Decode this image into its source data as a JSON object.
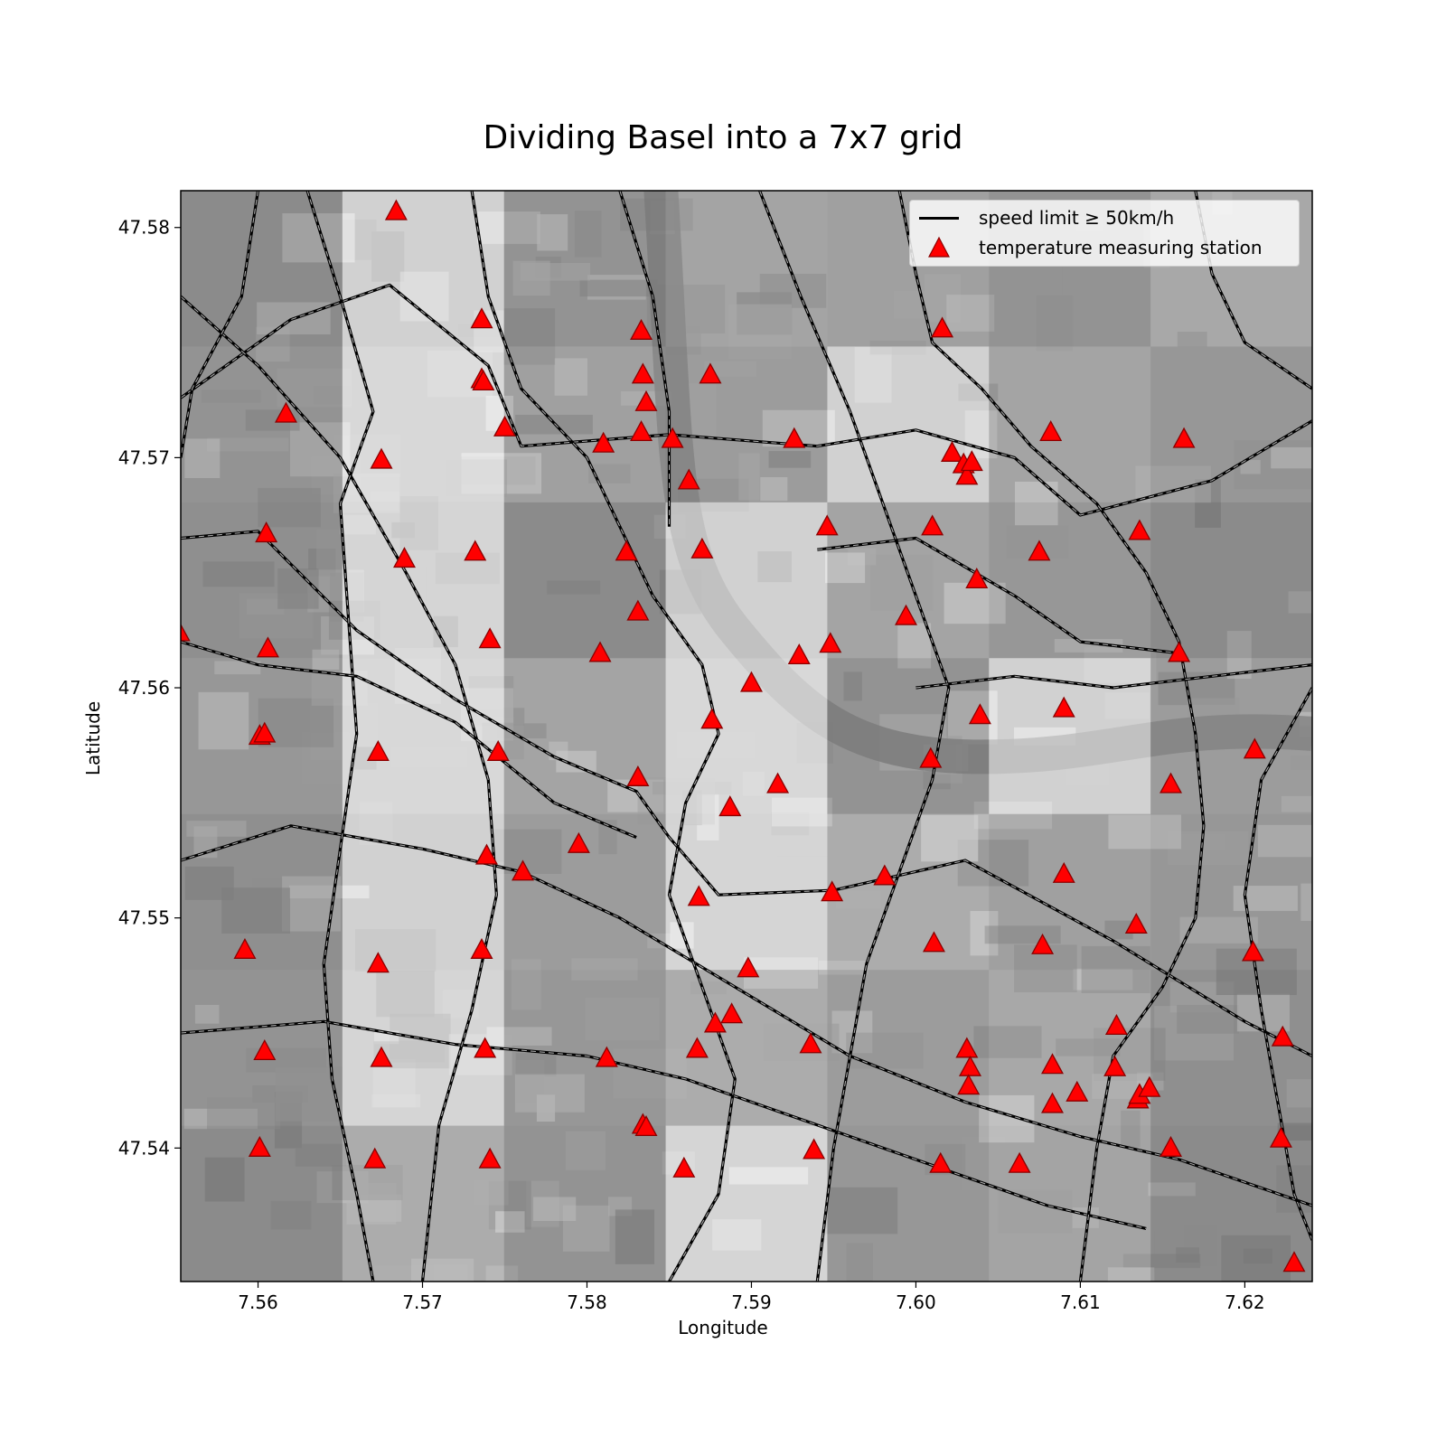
{
  "title": "Dividing Basel into a 7x7 grid",
  "chart_data": {
    "type": "scatter",
    "title": "Dividing Basel into a 7x7 grid",
    "xlabel": "Longitude",
    "ylabel": "Latitude",
    "xlim": [
      7.5553,
      7.6241
    ],
    "ylim": [
      47.5342,
      47.5816
    ],
    "x_ticks": [
      "7.56",
      "7.57",
      "7.58",
      "7.59",
      "7.60",
      "7.61",
      "7.62"
    ],
    "y_ticks": [
      "47.54",
      "47.55",
      "47.56",
      "47.57",
      "47.58"
    ],
    "grid_cells": "7x7",
    "grid_shading": [
      [
        0.55,
        0.1,
        0.45,
        0.25,
        0.3,
        0.45,
        0.2
      ],
      [
        0.45,
        0.0,
        0.3,
        0.35,
        0.1,
        0.25,
        0.4
      ],
      [
        0.5,
        0.05,
        0.55,
        0.1,
        0.25,
        0.4,
        0.55
      ],
      [
        0.4,
        0.0,
        0.25,
        0.0,
        0.45,
        0.1,
        0.35
      ],
      [
        0.5,
        0.1,
        0.35,
        0.05,
        0.15,
        0.3,
        0.4
      ],
      [
        0.45,
        0.05,
        0.4,
        0.15,
        0.35,
        0.2,
        0.5
      ],
      [
        0.55,
        0.15,
        0.45,
        0.05,
        0.4,
        0.25,
        0.55
      ]
    ],
    "legend": {
      "placement": "top-right",
      "entries": [
        "speed limit ≥ 50km/h",
        "temperature measuring station"
      ]
    },
    "series": [
      {
        "name": "temperature measuring station",
        "marker": "triangle",
        "color": "#ff0000",
        "edge_color": "#8b0000",
        "points": [
          [
            7.5552,
            47.5624
          ],
          [
            7.5684,
            47.5807
          ],
          [
            7.5736,
            47.576
          ],
          [
            7.5736,
            47.5734
          ],
          [
            7.5737,
            47.5733
          ],
          [
            7.5617,
            47.5719
          ],
          [
            7.5675,
            47.5699
          ],
          [
            7.575,
            47.5713
          ],
          [
            7.5605,
            47.5667
          ],
          [
            7.5689,
            47.5656
          ],
          [
            7.5732,
            47.5659
          ],
          [
            7.5833,
            47.5755
          ],
          [
            7.5834,
            47.5736
          ],
          [
            7.5836,
            47.5724
          ],
          [
            7.5833,
            47.5711
          ],
          [
            7.581,
            47.5706
          ],
          [
            7.5852,
            47.5708
          ],
          [
            7.5875,
            47.5736
          ],
          [
            7.5862,
            47.569
          ],
          [
            7.587,
            47.566
          ],
          [
            7.5824,
            47.5659
          ],
          [
            7.5831,
            47.5633
          ],
          [
            7.5808,
            47.5615
          ],
          [
            7.5741,
            47.5621
          ],
          [
            7.5606,
            47.5617
          ],
          [
            7.5601,
            47.5579
          ],
          [
            7.5604,
            47.558
          ],
          [
            7.5673,
            47.5572
          ],
          [
            7.5746,
            47.5572
          ],
          [
            7.5831,
            47.5561
          ],
          [
            7.5876,
            47.5586
          ],
          [
            7.59,
            47.5602
          ],
          [
            7.5929,
            47.5614
          ],
          [
            7.5948,
            47.5619
          ],
          [
            7.5946,
            47.567
          ],
          [
            7.5926,
            47.5708
          ],
          [
            7.6016,
            47.5756
          ],
          [
            7.6022,
            47.5702
          ],
          [
            7.6029,
            47.5697
          ],
          [
            7.6031,
            47.5692
          ],
          [
            7.6034,
            47.5698
          ],
          [
            7.601,
            47.567
          ],
          [
            7.6037,
            47.5647
          ],
          [
            7.5994,
            47.5631
          ],
          [
            7.6039,
            47.5588
          ],
          [
            7.6009,
            47.5569
          ],
          [
            7.6082,
            47.5711
          ],
          [
            7.6075,
            47.5659
          ],
          [
            7.6136,
            47.5668
          ],
          [
            7.6163,
            47.5708
          ],
          [
            7.616,
            47.5615
          ],
          [
            7.609,
            47.5591
          ],
          [
            7.6155,
            47.5558
          ],
          [
            7.6206,
            47.5573
          ],
          [
            7.5916,
            47.5558
          ],
          [
            7.5887,
            47.5548
          ],
          [
            7.5795,
            47.5532
          ],
          [
            7.5739,
            47.5527
          ],
          [
            7.5761,
            47.552
          ],
          [
            7.5868,
            47.5509
          ],
          [
            7.5949,
            47.5511
          ],
          [
            7.5981,
            47.5518
          ],
          [
            7.609,
            47.5519
          ],
          [
            7.6011,
            47.5489
          ],
          [
            7.6077,
            47.5488
          ],
          [
            7.6134,
            47.5497
          ],
          [
            7.6205,
            47.5485
          ],
          [
            7.5592,
            47.5486
          ],
          [
            7.5673,
            47.548
          ],
          [
            7.5736,
            47.5486
          ],
          [
            7.5898,
            47.5478
          ],
          [
            7.5888,
            47.5458
          ],
          [
            7.5878,
            47.5454
          ],
          [
            7.5867,
            47.5443
          ],
          [
            7.5936,
            47.5445
          ],
          [
            7.5812,
            47.5439
          ],
          [
            7.5738,
            47.5443
          ],
          [
            7.5675,
            47.5439
          ],
          [
            7.5604,
            47.5442
          ],
          [
            7.5601,
            47.54
          ],
          [
            7.5671,
            47.5395
          ],
          [
            7.5741,
            47.5395
          ],
          [
            7.5834,
            47.541
          ],
          [
            7.5836,
            47.5409
          ],
          [
            7.5859,
            47.5391
          ],
          [
            7.5938,
            47.5399
          ],
          [
            7.6015,
            47.5393
          ],
          [
            7.6063,
            47.5393
          ],
          [
            7.6031,
            47.5443
          ],
          [
            7.6033,
            47.5435
          ],
          [
            7.6032,
            47.5427
          ],
          [
            7.6083,
            47.5436
          ],
          [
            7.6083,
            47.5419
          ],
          [
            7.6098,
            47.5424
          ],
          [
            7.6121,
            47.5435
          ],
          [
            7.6122,
            47.5453
          ],
          [
            7.6135,
            47.5421
          ],
          [
            7.6136,
            47.5423
          ],
          [
            7.6142,
            47.5426
          ],
          [
            7.6155,
            47.54
          ],
          [
            7.6222,
            47.5404
          ],
          [
            7.6223,
            47.5448
          ],
          [
            7.623,
            47.535
          ]
        ]
      },
      {
        "name": "speed limit ≥ 50km/h",
        "type": "line",
        "color": "#000000",
        "paths": [
          [
            [
              7.5553,
              47.5726
            ],
            [
              7.562,
              47.576
            ],
            [
              7.568,
              47.5775
            ],
            [
              7.574,
              47.574
            ],
            [
              7.576,
              47.5705
            ],
            [
              7.585,
              47.571
            ],
            [
              7.594,
              47.5705
            ],
            [
              7.6,
              47.5712
            ],
            [
              7.606,
              47.57
            ],
            [
              7.61,
              47.5675
            ],
            [
              7.618,
              47.569
            ],
            [
              7.6241,
              47.5716
            ]
          ],
          [
            [
              7.5553,
              47.5665
            ],
            [
              7.56,
              47.5668
            ],
            [
              7.566,
              47.5625
            ],
            [
              7.572,
              47.5595
            ],
            [
              7.578,
              47.557
            ],
            [
              7.583,
              47.5555
            ],
            [
              7.585,
              47.5535
            ],
            [
              7.588,
              47.551
            ],
            [
              7.595,
              47.5512
            ],
            [
              7.603,
              47.5525
            ],
            [
              7.612,
              47.549
            ],
            [
              7.62,
              47.5455
            ],
            [
              7.6241,
              47.544
            ]
          ],
          [
            [
              7.5553,
              47.5525
            ],
            [
              7.562,
              47.554
            ],
            [
              7.57,
              47.553
            ],
            [
              7.576,
              47.552
            ],
            [
              7.582,
              47.55
            ],
            [
              7.589,
              47.547
            ],
            [
              7.596,
              47.544
            ],
            [
              7.603,
              47.542
            ],
            [
              7.61,
              47.5405
            ],
            [
              7.616,
              47.5395
            ],
            [
              7.6241,
              47.5375
            ]
          ],
          [
            [
              7.5553,
              47.545
            ],
            [
              7.564,
              47.5455
            ],
            [
              7.572,
              47.5445
            ],
            [
              7.58,
              47.544
            ],
            [
              7.586,
              47.543
            ],
            [
              7.592,
              47.5415
            ],
            [
              7.6,
              47.5395
            ],
            [
              7.608,
              47.5375
            ],
            [
              7.614,
              47.5365
            ]
          ],
          [
            [
              7.5553,
              47.577
            ],
            [
              7.56,
              47.574
            ],
            [
              7.565,
              47.57
            ],
            [
              7.569,
              47.565
            ],
            [
              7.572,
              47.561
            ],
            [
              7.574,
              47.556
            ],
            [
              7.5745,
              47.551
            ],
            [
              7.573,
              47.546
            ],
            [
              7.571,
              47.541
            ],
            [
              7.57,
              47.5342
            ]
          ],
          [
            [
              7.563,
              47.5816
            ],
            [
              7.565,
              47.577
            ],
            [
              7.567,
              47.572
            ],
            [
              7.565,
              47.568
            ],
            [
              7.5655,
              47.563
            ],
            [
              7.566,
              47.558
            ],
            [
              7.565,
              47.553
            ],
            [
              7.564,
              47.548
            ],
            [
              7.5645,
              47.543
            ],
            [
              7.566,
              47.538
            ],
            [
              7.567,
              47.5342
            ]
          ],
          [
            [
              7.573,
              47.5816
            ],
            [
              7.574,
              47.577
            ],
            [
              7.576,
              47.573
            ],
            [
              7.58,
              47.57
            ],
            [
              7.582,
              47.567
            ],
            [
              7.584,
              47.564
            ],
            [
              7.587,
              47.561
            ],
            [
              7.588,
              47.558
            ],
            [
              7.586,
              47.555
            ],
            [
              7.585,
              47.551
            ],
            [
              7.587,
              47.547
            ],
            [
              7.589,
              47.543
            ],
            [
              7.588,
              47.538
            ],
            [
              7.585,
              47.5342
            ]
          ],
          [
            [
              7.582,
              47.5816
            ],
            [
              7.584,
              47.577
            ],
            [
              7.585,
              47.572
            ],
            [
              7.585,
              47.567
            ]
          ],
          [
            [
              7.5905,
              47.5816
            ],
            [
              7.593,
              47.577
            ],
            [
              7.596,
              47.572
            ],
            [
              7.598,
              47.568
            ],
            [
              7.6,
              47.564
            ],
            [
              7.602,
              47.56
            ],
            [
              7.601,
              47.556
            ],
            [
              7.599,
              47.552
            ],
            [
              7.597,
              47.548
            ],
            [
              7.596,
              47.544
            ],
            [
              7.595,
              47.54
            ],
            [
              7.594,
              47.5342
            ]
          ],
          [
            [
              7.599,
              47.5816
            ],
            [
              7.6,
              47.578
            ],
            [
              7.601,
              47.575
            ],
            [
              7.604,
              47.573
            ],
            [
              7.607,
              47.5705
            ],
            [
              7.611,
              47.568
            ],
            [
              7.614,
              47.565
            ],
            [
              7.616,
              47.562
            ],
            [
              7.617,
              47.558
            ],
            [
              7.6175,
              47.554
            ],
            [
              7.617,
              47.55
            ],
            [
              7.615,
              47.547
            ],
            [
              7.612,
              47.544
            ],
            [
              7.611,
              47.54
            ],
            [
              7.61,
              47.5342
            ]
          ],
          [
            [
              7.56,
              47.5816
            ],
            [
              7.559,
              47.577
            ],
            [
              7.556,
              47.573
            ],
            [
              7.5553,
              47.57
            ]
          ],
          [
            [
              7.617,
              47.5816
            ],
            [
              7.618,
              47.578
            ],
            [
              7.62,
              47.575
            ],
            [
              7.6241,
              47.573
            ]
          ],
          [
            [
              7.6241,
              47.56
            ],
            [
              7.621,
              47.556
            ],
            [
              7.62,
              47.551
            ],
            [
              7.621,
              47.546
            ],
            [
              7.622,
              47.542
            ],
            [
              7.623,
              47.538
            ],
            [
              7.6241,
              47.536
            ]
          ],
          [
            [
              7.5553,
              47.562
            ],
            [
              7.56,
              47.561
            ],
            [
              7.566,
              47.5605
            ],
            [
              7.572,
              47.5585
            ],
            [
              7.578,
              47.555
            ],
            [
              7.583,
              47.5535
            ]
          ],
          [
            [
              7.6,
              47.56
            ],
            [
              7.606,
              47.5605
            ],
            [
              7.612,
              47.56
            ],
            [
              7.618,
              47.5605
            ],
            [
              7.6241,
              47.561
            ]
          ],
          [
            [
              7.594,
              47.566
            ],
            [
              7.6,
              47.5665
            ],
            [
              7.606,
              47.564
            ],
            [
              7.61,
              47.562
            ],
            [
              7.616,
              47.5615
            ]
          ]
        ]
      }
    ]
  }
}
